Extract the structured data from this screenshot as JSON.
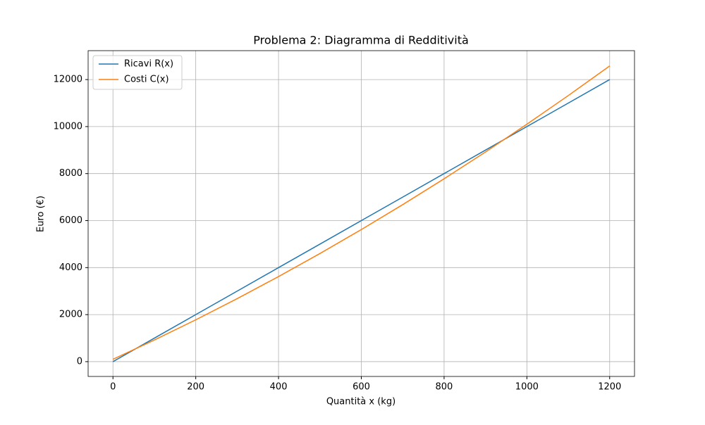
{
  "chart_data": {
    "type": "line",
    "title": "Problema 2: Diagramma di Redditività",
    "xlabel": "Quantità x (kg)",
    "ylabel": "Euro (€)",
    "x": [
      0,
      100,
      200,
      300,
      400,
      500,
      600,
      700,
      800,
      900,
      1000,
      1100,
      1200
    ],
    "series": [
      {
        "name": "Ricavi R(x)",
        "color": "#1f77b4",
        "values": [
          0,
          1000,
          2000,
          3000,
          4000,
          5000,
          6000,
          7000,
          8000,
          9000,
          10000,
          11000,
          12000
        ]
      },
      {
        "name": "Costi C(x)",
        "color": "#ff7f0e",
        "values": [
          100,
          920,
          1780,
          2680,
          3620,
          4600,
          5620,
          6680,
          7780,
          8920,
          10100,
          11320,
          12580
        ]
      }
    ],
    "xlim": [
      -60,
      1260
    ],
    "ylim": [
      -630,
      13230
    ],
    "xticks": [
      0,
      200,
      400,
      600,
      800,
      1000,
      1200
    ],
    "yticks": [
      0,
      2000,
      4000,
      6000,
      8000,
      10000,
      12000
    ],
    "grid": true,
    "legend": "upper left"
  }
}
